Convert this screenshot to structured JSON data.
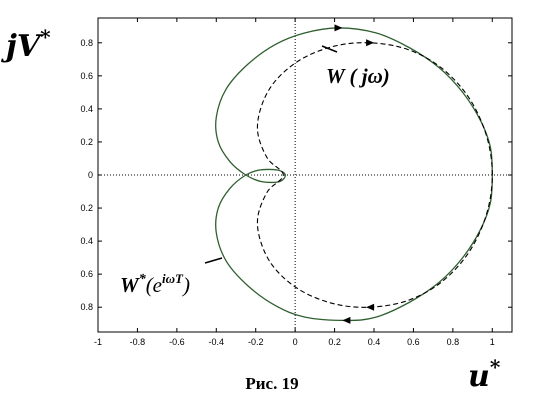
{
  "chart_data": {
    "type": "line",
    "xlabel": "u",
    "xlabel_sup": "*",
    "ylabel": "jV",
    "ylabel_sup": "*",
    "xlim": [
      -1,
      1.1
    ],
    "ylim": [
      -0.95,
      0.95
    ],
    "x_ticks": [
      -1,
      -0.8,
      -0.6,
      -0.4,
      -0.2,
      0,
      0.2,
      0.4,
      0.6,
      0.8,
      1
    ],
    "x_tick_labels": [
      "-1",
      "-0.8",
      "-0.6",
      "-0.4",
      "-0.2",
      "0",
      "0.2",
      "0.4",
      "0.6",
      "0.8",
      "1"
    ],
    "y_ticks": [
      0.8,
      0.6,
      0.4,
      0.2,
      0,
      -0.2,
      -0.4,
      -0.6,
      -0.8
    ],
    "y_tick_labels": [
      "0.8",
      "0.6",
      "0.4",
      "0.2",
      "0",
      "0.2",
      "0.4",
      "0.6",
      "0.8"
    ],
    "grid": false,
    "zero_lines": "dotted",
    "series": [
      {
        "name": "W*(e^{iωT})",
        "style": "solid",
        "color": "#2f5f2f",
        "arrows": [
          {
            "x": 0.22,
            "y": 0.89,
            "dir": "right"
          },
          {
            "x": 0.26,
            "y": -0.88,
            "dir": "left"
          }
        ],
        "points": [
          {
            "x": 1.0,
            "y": 0.0
          },
          {
            "x": 0.99,
            "y": 0.17
          },
          {
            "x": 0.94,
            "y": 0.33
          },
          {
            "x": 0.85,
            "y": 0.5
          },
          {
            "x": 0.73,
            "y": 0.65
          },
          {
            "x": 0.58,
            "y": 0.77
          },
          {
            "x": 0.41,
            "y": 0.86
          },
          {
            "x": 0.22,
            "y": 0.89
          },
          {
            "x": 0.05,
            "y": 0.86
          },
          {
            "x": -0.1,
            "y": 0.79
          },
          {
            "x": -0.24,
            "y": 0.67
          },
          {
            "x": -0.35,
            "y": 0.52
          },
          {
            "x": -0.4,
            "y": 0.35
          },
          {
            "x": -0.39,
            "y": 0.2
          },
          {
            "x": -0.33,
            "y": 0.08
          },
          {
            "x": -0.25,
            "y": 0.0
          },
          {
            "x": -0.17,
            "y": -0.04
          },
          {
            "x": -0.08,
            "y": -0.04
          },
          {
            "x": -0.05,
            "y": 0.0
          },
          {
            "x": -0.09,
            "y": 0.03
          },
          {
            "x": -0.18,
            "y": 0.03
          },
          {
            "x": -0.25,
            "y": 0.0
          },
          {
            "x": -0.33,
            "y": -0.08
          },
          {
            "x": -0.39,
            "y": -0.2
          },
          {
            "x": -0.4,
            "y": -0.35
          },
          {
            "x": -0.35,
            "y": -0.52
          },
          {
            "x": -0.24,
            "y": -0.67
          },
          {
            "x": -0.1,
            "y": -0.79
          },
          {
            "x": 0.05,
            "y": -0.86
          },
          {
            "x": 0.26,
            "y": -0.88
          },
          {
            "x": 0.41,
            "y": -0.86
          },
          {
            "x": 0.58,
            "y": -0.77
          },
          {
            "x": 0.73,
            "y": -0.65
          },
          {
            "x": 0.85,
            "y": -0.5
          },
          {
            "x": 0.94,
            "y": -0.33
          },
          {
            "x": 0.99,
            "y": -0.17
          },
          {
            "x": 1.0,
            "y": 0.0
          }
        ]
      },
      {
        "name": "W(jω)",
        "style": "dashed",
        "color": "#000000",
        "arrows": [
          {
            "x": 0.38,
            "y": 0.8,
            "dir": "right"
          },
          {
            "x": 0.38,
            "y": -0.8,
            "dir": "left"
          }
        ],
        "points": [
          {
            "x": 1.0,
            "y": 0.0
          },
          {
            "x": 0.97,
            "y": 0.24
          },
          {
            "x": 0.88,
            "y": 0.47
          },
          {
            "x": 0.74,
            "y": 0.65
          },
          {
            "x": 0.57,
            "y": 0.76
          },
          {
            "x": 0.38,
            "y": 0.8
          },
          {
            "x": 0.2,
            "y": 0.78
          },
          {
            "x": 0.03,
            "y": 0.7
          },
          {
            "x": -0.1,
            "y": 0.57
          },
          {
            "x": -0.17,
            "y": 0.42
          },
          {
            "x": -0.19,
            "y": 0.26
          },
          {
            "x": -0.14,
            "y": 0.1
          },
          {
            "x": -0.06,
            "y": 0.0
          },
          {
            "x": -0.14,
            "y": -0.1
          },
          {
            "x": -0.19,
            "y": -0.26
          },
          {
            "x": -0.17,
            "y": -0.42
          },
          {
            "x": -0.1,
            "y": -0.57
          },
          {
            "x": 0.03,
            "y": -0.7
          },
          {
            "x": 0.2,
            "y": -0.78
          },
          {
            "x": 0.38,
            "y": -0.8
          },
          {
            "x": 0.57,
            "y": -0.76
          },
          {
            "x": 0.74,
            "y": -0.65
          },
          {
            "x": 0.88,
            "y": -0.47
          },
          {
            "x": 0.97,
            "y": -0.24
          },
          {
            "x": 1.0,
            "y": 0.0
          }
        ]
      }
    ],
    "annotations": [
      {
        "text": "W ( jω)",
        "target": "dashed-series"
      },
      {
        "text_main": "W",
        "text_sup": "*",
        "text_paren": "(e",
        "text_exp": "iωT",
        "text_close": ")",
        "target": "solid-series"
      }
    ],
    "caption": "Рис. 19"
  }
}
